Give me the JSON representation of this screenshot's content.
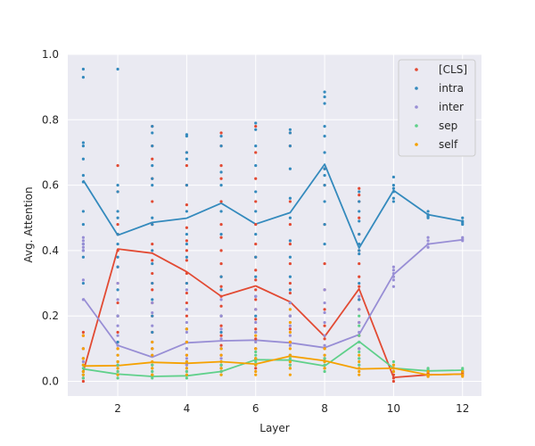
{
  "chart_data": {
    "type": "line",
    "xlabel": "Layer",
    "ylabel": "Avg. Attention",
    "xlim": [
      0.55,
      12.55
    ],
    "ylim": [
      -0.045,
      1.0
    ],
    "xticks": [
      2,
      4,
      6,
      8,
      10,
      12
    ],
    "yticks": [
      "0.0",
      "0.2",
      "0.4",
      "0.6",
      "0.8",
      "1.0"
    ],
    "grid": true,
    "legend_position": "top-right",
    "x": [
      1,
      2,
      3,
      4,
      5,
      6,
      7,
      8,
      9,
      10,
      11,
      12
    ],
    "series": [
      {
        "name": "[CLS]",
        "color": "#e24a33",
        "values": [
          0.03,
          0.405,
          0.392,
          0.335,
          0.26,
          0.292,
          0.243,
          0.137,
          0.283,
          0.012,
          0.02,
          0.022
        ],
        "points": {
          "1": [
            0.15,
            0.14,
            0.1,
            0.07,
            0.05,
            0.03,
            0.02,
            0.01,
            0.0
          ],
          "2": [
            0.66,
            0.58,
            0.48,
            0.45,
            0.4,
            0.35,
            0.3,
            0.24,
            0.2,
            0.15,
            0.12,
            0.1,
            0.06,
            0.03
          ],
          "3": [
            0.78,
            0.72,
            0.68,
            0.62,
            0.55,
            0.48,
            0.42,
            0.37,
            0.33,
            0.3,
            0.28,
            0.24,
            0.2,
            0.15,
            0.1,
            0.05,
            0.02
          ],
          "4": [
            0.7,
            0.66,
            0.6,
            0.54,
            0.47,
            0.43,
            0.4,
            0.37,
            0.33,
            0.3,
            0.27,
            0.24,
            0.2,
            0.16,
            0.12,
            0.08,
            0.05,
            0.03
          ],
          "5": [
            0.76,
            0.72,
            0.66,
            0.62,
            0.55,
            0.48,
            0.44,
            0.4,
            0.36,
            0.32,
            0.29,
            0.26,
            0.23,
            0.2,
            0.17,
            0.14,
            0.11,
            0.08,
            0.05,
            0.03
          ],
          "6": [
            0.78,
            0.7,
            0.62,
            0.55,
            0.48,
            0.42,
            0.38,
            0.34,
            0.31,
            0.28,
            0.25,
            0.22,
            0.19,
            0.16,
            0.13,
            0.1,
            0.07,
            0.04
          ],
          "7": [
            0.76,
            0.72,
            0.55,
            0.48,
            0.42,
            0.36,
            0.3,
            0.27,
            0.24,
            0.2,
            0.16,
            0.12,
            0.08,
            0.05
          ],
          "8": [
            0.65,
            0.6,
            0.48,
            0.36,
            0.28,
            0.22,
            0.17,
            0.13,
            0.1,
            0.07,
            0.04
          ],
          "9": [
            0.59,
            0.57,
            0.55,
            0.5,
            0.45,
            0.4,
            0.36,
            0.32,
            0.29,
            0.25,
            0.22,
            0.18,
            0.14,
            0.1
          ],
          "10": [
            0.04,
            0.02,
            0.01,
            0.0
          ],
          "11": [
            0.03,
            0.025,
            0.02,
            0.015
          ],
          "12": [
            0.03,
            0.025,
            0.02
          ]
        }
      },
      {
        "name": "intra",
        "color": "#348abd",
        "values": [
          0.615,
          0.447,
          0.486,
          0.499,
          0.545,
          0.481,
          0.516,
          0.664,
          0.408,
          0.584,
          0.51,
          0.49
        ],
        "points": {
          "1": [
            0.955,
            0.93,
            0.73,
            0.72,
            0.68,
            0.63,
            0.61,
            0.52,
            0.48,
            0.42,
            0.4,
            0.38,
            0.3
          ],
          "2": [
            0.955,
            0.6,
            0.58,
            0.52,
            0.5,
            0.45,
            0.42,
            0.38,
            0.35,
            0.28,
            0.2,
            0.12,
            0.05
          ],
          "3": [
            0.78,
            0.76,
            0.72,
            0.66,
            0.62,
            0.6,
            0.5,
            0.48,
            0.4,
            0.36,
            0.3,
            0.25,
            0.2,
            0.15
          ],
          "4": [
            0.755,
            0.75,
            0.7,
            0.68,
            0.6,
            0.52,
            0.45,
            0.42,
            0.38,
            0.3,
            0.22,
            0.16,
            0.1
          ],
          "5": [
            0.75,
            0.72,
            0.64,
            0.6,
            0.52,
            0.45,
            0.32,
            0.28,
            0.2,
            0.15,
            0.1,
            0.05
          ],
          "6": [
            0.79,
            0.77,
            0.72,
            0.66,
            0.58,
            0.52,
            0.45,
            0.38,
            0.32,
            0.26,
            0.2,
            0.15
          ],
          "7": [
            0.77,
            0.76,
            0.72,
            0.65,
            0.56,
            0.5,
            0.43,
            0.38,
            0.32,
            0.28,
            0.24,
            0.2
          ],
          "8": [
            0.885,
            0.87,
            0.85,
            0.78,
            0.75,
            0.7,
            0.65,
            0.63,
            0.6,
            0.55,
            0.48,
            0.42
          ],
          "9": [
            0.58,
            0.55,
            0.52,
            0.49,
            0.45,
            0.42,
            0.4,
            0.39,
            0.3,
            0.25
          ],
          "10": [
            0.625,
            0.6,
            0.59,
            0.58,
            0.56,
            0.55
          ],
          "11": [
            0.52,
            0.51,
            0.505,
            0.5
          ],
          "12": [
            0.5,
            0.49,
            0.485,
            0.48
          ]
        }
      },
      {
        "name": "inter",
        "color": "#988ed5",
        "values": [
          0.254,
          0.11,
          0.074,
          0.118,
          0.124,
          0.126,
          0.118,
          0.103,
          0.143,
          0.327,
          0.42,
          0.433
        ],
        "points": {
          "1": [
            0.44,
            0.43,
            0.42,
            0.41,
            0.4,
            0.31,
            0.25,
            0.1,
            0.06,
            0.02
          ],
          "2": [
            0.3,
            0.25,
            0.2,
            0.17,
            0.14,
            0.11,
            0.08,
            0.05
          ],
          "3": [
            0.24,
            0.21,
            0.17,
            0.12,
            0.1,
            0.08,
            0.05,
            0.03
          ],
          "4": [
            0.28,
            0.22,
            0.18,
            0.15,
            0.12,
            0.1,
            0.07,
            0.05
          ],
          "5": [
            0.25,
            0.2,
            0.16,
            0.13,
            0.1,
            0.07,
            0.04
          ],
          "6": [
            0.26,
            0.22,
            0.18,
            0.15,
            0.12,
            0.1,
            0.07,
            0.05
          ],
          "7": [
            0.24,
            0.2,
            0.17,
            0.14,
            0.11,
            0.08,
            0.05
          ],
          "8": [
            0.28,
            0.24,
            0.21,
            0.18,
            0.14,
            0.11,
            0.08,
            0.05
          ],
          "9": [
            0.26,
            0.22,
            0.18,
            0.15,
            0.12,
            0.1,
            0.07,
            0.05
          ],
          "10": [
            0.35,
            0.34,
            0.33,
            0.32,
            0.31,
            0.29
          ],
          "11": [
            0.44,
            0.43,
            0.42,
            0.41
          ],
          "12": [
            0.44,
            0.435,
            0.43
          ]
        }
      },
      {
        "name": "sep",
        "color": "#5fd08a",
        "values": [
          0.038,
          0.022,
          0.015,
          0.017,
          0.03,
          0.066,
          0.065,
          0.047,
          0.122,
          0.04,
          0.032,
          0.034
        ],
        "points": {
          "1": [
            0.07,
            0.05,
            0.04,
            0.03,
            0.02,
            0.01
          ],
          "2": [
            0.06,
            0.05,
            0.04,
            0.03,
            0.02,
            0.01
          ],
          "3": [
            0.05,
            0.04,
            0.03,
            0.02,
            0.01
          ],
          "4": [
            0.06,
            0.04,
            0.03,
            0.02,
            0.01
          ],
          "5": [
            0.06,
            0.05,
            0.04,
            0.03,
            0.02
          ],
          "6": [
            0.09,
            0.08,
            0.07,
            0.06,
            0.05
          ],
          "7": [
            0.08,
            0.07,
            0.06,
            0.05,
            0.04
          ],
          "8": [
            0.07,
            0.06,
            0.05,
            0.04,
            0.03
          ],
          "9": [
            0.2,
            0.17,
            0.14,
            0.12,
            0.09,
            0.07,
            0.05
          ],
          "10": [
            0.06,
            0.05,
            0.04,
            0.03
          ],
          "11": [
            0.04,
            0.035,
            0.03
          ],
          "12": [
            0.04,
            0.035,
            0.03
          ]
        }
      },
      {
        "name": "self",
        "color": "#f5a100",
        "values": [
          0.047,
          0.048,
          0.058,
          0.055,
          0.06,
          0.053,
          0.077,
          0.063,
          0.038,
          0.04,
          0.02,
          0.022
        ],
        "points": {
          "1": [
            0.14,
            0.1,
            0.07,
            0.05,
            0.03,
            0.02
          ],
          "2": [
            0.1,
            0.08,
            0.06,
            0.04,
            0.02
          ],
          "3": [
            0.12,
            0.1,
            0.08,
            0.06,
            0.04,
            0.02
          ],
          "4": [
            0.16,
            0.12,
            0.08,
            0.06,
            0.04,
            0.02
          ],
          "5": [
            0.1,
            0.08,
            0.06,
            0.04,
            0.02
          ],
          "6": [
            0.14,
            0.1,
            0.07,
            0.05,
            0.03,
            0.02
          ],
          "7": [
            0.22,
            0.18,
            0.15,
            0.12,
            0.1,
            0.08,
            0.06,
            0.04,
            0.02
          ],
          "8": [
            0.1,
            0.08,
            0.06,
            0.04
          ],
          "9": [
            0.08,
            0.06,
            0.04,
            0.03,
            0.02
          ],
          "10": [
            0.05,
            0.04,
            0.03
          ],
          "11": [
            0.03,
            0.02,
            0.015
          ],
          "12": [
            0.03,
            0.02,
            0.015
          ]
        }
      }
    ]
  }
}
